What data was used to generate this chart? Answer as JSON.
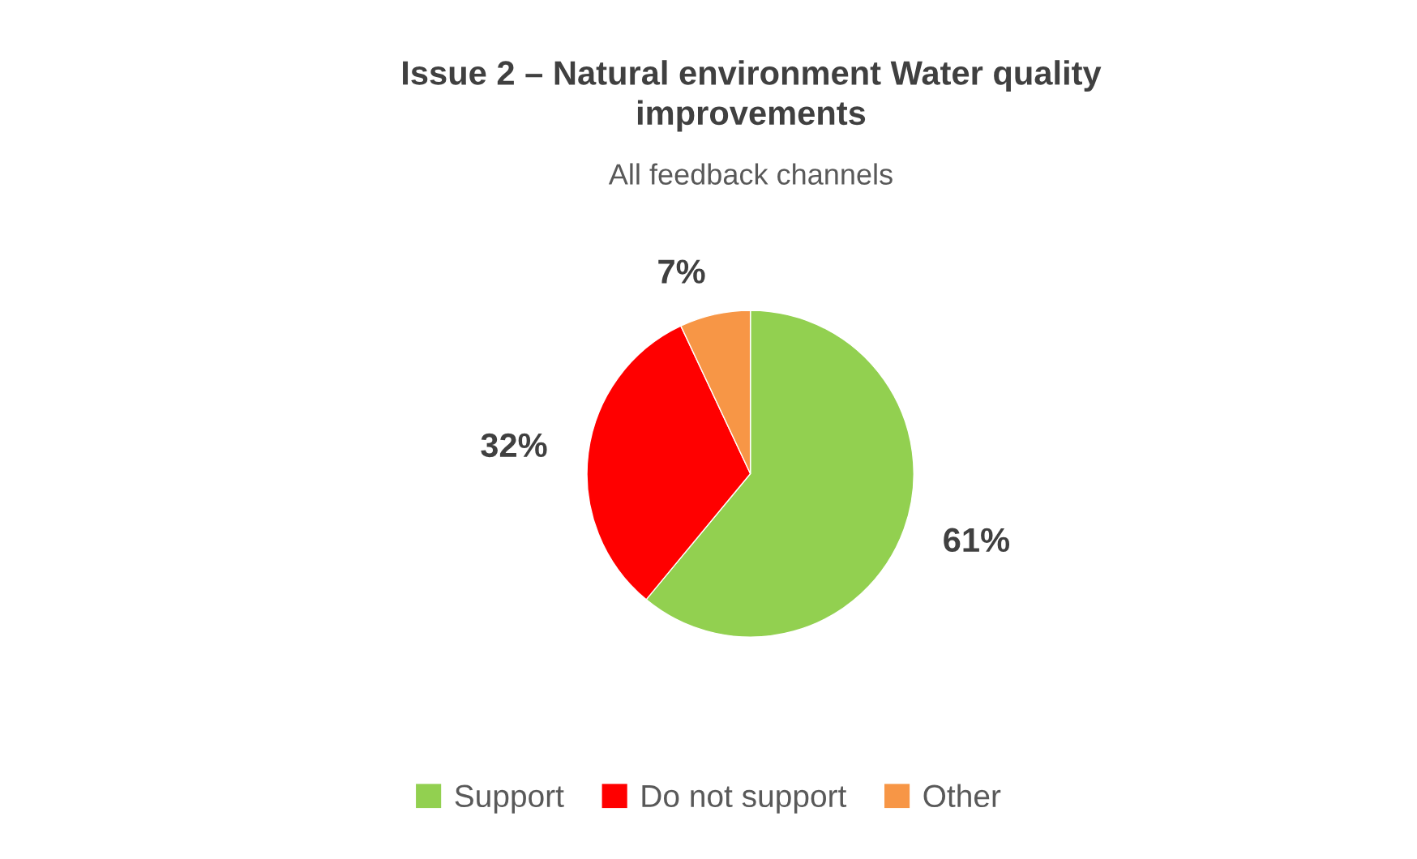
{
  "chart_data": {
    "type": "pie",
    "title": "Issue 2 – Natural environment Water quality\nimprovements",
    "subtitle": "All feedback channels",
    "categories": [
      "Support",
      "Do not support",
      "Other"
    ],
    "values": [
      61,
      32,
      7
    ],
    "value_labels": [
      "61%",
      "32%",
      "7%"
    ],
    "colors": [
      "#92d050",
      "#ff0000",
      "#f79646"
    ],
    "legend": "bottom"
  }
}
